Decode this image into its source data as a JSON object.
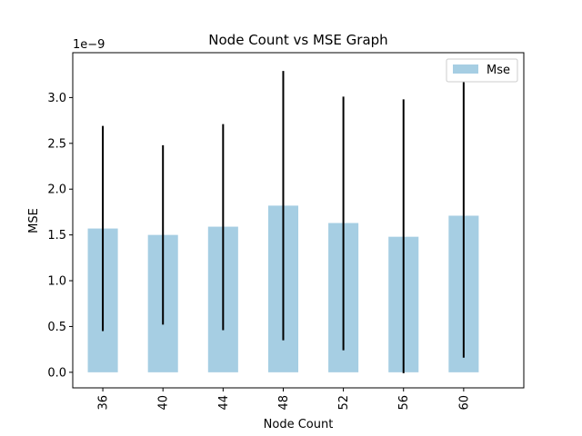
{
  "chart_data": {
    "type": "bar",
    "title": "Node Count vs MSE Graph",
    "xlabel": "Node Count",
    "ylabel": "MSE",
    "y_offset_label": "1e−9",
    "categories": [
      "36",
      "40",
      "44",
      "48",
      "52",
      "56",
      "60"
    ],
    "series": [
      {
        "name": "Mse",
        "values": [
          1.57,
          1.5,
          1.59,
          1.82,
          1.63,
          1.48,
          1.71
        ],
        "error_low": [
          0.45,
          0.52,
          0.46,
          0.35,
          0.24,
          -0.01,
          0.16
        ],
        "error_high": [
          2.69,
          2.48,
          2.71,
          3.29,
          3.01,
          2.98,
          3.24
        ]
      }
    ],
    "ylim": [
      -0.17,
      3.49
    ],
    "yticks": [
      0.0,
      0.5,
      1.0,
      1.5,
      2.0,
      2.5,
      3.0
    ],
    "ytick_labels": [
      "0.0",
      "0.5",
      "1.0",
      "1.5",
      "2.0",
      "2.5",
      "3.0"
    ],
    "grid": false,
    "legend": "top-right",
    "colors": {
      "bar": "#a6cee3",
      "error": "#000000"
    }
  }
}
